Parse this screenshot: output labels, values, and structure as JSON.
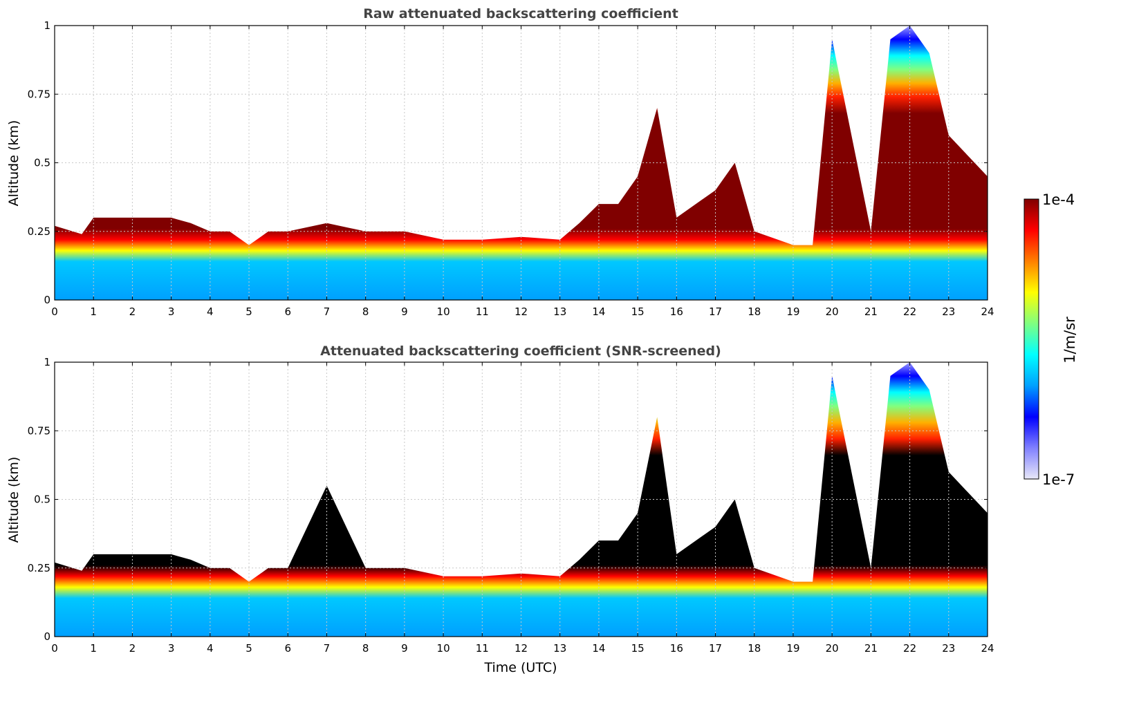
{
  "chart_data": [
    {
      "type": "heatmap",
      "title": "Raw attenuated backscattering coefficient",
      "xlabel": "",
      "ylabel": "Altitude (km)",
      "xlim": [
        0,
        24
      ],
      "ylim": [
        0,
        1
      ],
      "xticks": [
        0,
        1,
        2,
        3,
        4,
        5,
        6,
        7,
        8,
        9,
        10,
        11,
        12,
        13,
        14,
        15,
        16,
        17,
        18,
        19,
        20,
        21,
        22,
        23,
        24
      ],
      "yticks": [
        0,
        0.25,
        0.5,
        0.75,
        1
      ],
      "ytick_labels": [
        "0",
        "0.25",
        "0.5",
        "0.75",
        "1"
      ],
      "grid": true,
      "boundary_layer_top_km": {
        "time_utc": [
          0,
          0.7,
          1,
          2,
          3,
          3.5,
          4,
          4.5,
          5,
          5.5,
          6,
          7,
          8,
          9,
          10,
          11,
          12,
          13,
          13.5,
          14,
          14.5,
          15,
          15.5,
          16,
          17,
          17.5,
          18,
          19,
          19.5,
          20,
          21,
          21.5,
          22,
          22.5,
          23,
          24
        ],
        "top_km": [
          0.27,
          0.24,
          0.3,
          0.3,
          0.3,
          0.28,
          0.25,
          0.25,
          0.2,
          0.25,
          0.25,
          0.28,
          0.25,
          0.25,
          0.22,
          0.22,
          0.23,
          0.22,
          0.28,
          0.35,
          0.35,
          0.45,
          0.7,
          0.3,
          0.4,
          0.5,
          0.25,
          0.2,
          0.2,
          0.95,
          0.25,
          0.95,
          1.0,
          0.9,
          0.6,
          0.45
        ]
      }
    },
    {
      "type": "heatmap",
      "title": "Attenuated backscattering coefficient (SNR-screened)",
      "xlabel": "Time (UTC)",
      "ylabel": "Altitude (km)",
      "xlim": [
        0,
        24
      ],
      "ylim": [
        0,
        1
      ],
      "xticks": [
        0,
        1,
        2,
        3,
        4,
        5,
        6,
        7,
        8,
        9,
        10,
        11,
        12,
        13,
        14,
        15,
        16,
        17,
        18,
        19,
        20,
        21,
        22,
        23,
        24
      ],
      "yticks": [
        0,
        0.25,
        0.5,
        0.75,
        1
      ],
      "ytick_labels": [
        "0",
        "0.25",
        "0.5",
        "0.75",
        "1"
      ],
      "grid": true,
      "boundary_layer_top_km": {
        "time_utc": [
          0,
          0.7,
          1,
          2,
          3,
          3.5,
          4,
          4.5,
          5,
          5.5,
          6,
          7,
          8,
          9,
          10,
          11,
          12,
          13,
          13.5,
          14,
          14.5,
          15,
          15.5,
          16,
          17,
          17.5,
          18,
          19,
          19.5,
          20,
          21,
          21.5,
          22,
          22.5,
          23,
          24
        ],
        "top_km": [
          0.27,
          0.24,
          0.3,
          0.3,
          0.3,
          0.28,
          0.25,
          0.25,
          0.2,
          0.25,
          0.25,
          0.55,
          0.25,
          0.25,
          0.22,
          0.22,
          0.23,
          0.22,
          0.28,
          0.35,
          0.35,
          0.45,
          0.8,
          0.3,
          0.4,
          0.5,
          0.25,
          0.2,
          0.2,
          0.95,
          0.25,
          0.95,
          1.0,
          0.9,
          0.6,
          0.45
        ]
      }
    }
  ],
  "colorbar": {
    "max_label": "1e-4",
    "min_label": "1e-7",
    "unit_label": "1/m/sr",
    "scale": "log",
    "colormap": "jet",
    "stops": [
      "#e8e8f8",
      "#8080ff",
      "#0000ff",
      "#00a0ff",
      "#00ffff",
      "#80ff80",
      "#ffff00",
      "#ff8000",
      "#ff0000",
      "#800000"
    ]
  },
  "colors": {
    "grid": "#c8c8c8",
    "title": "#444444",
    "screened_saturation": "#000000"
  }
}
